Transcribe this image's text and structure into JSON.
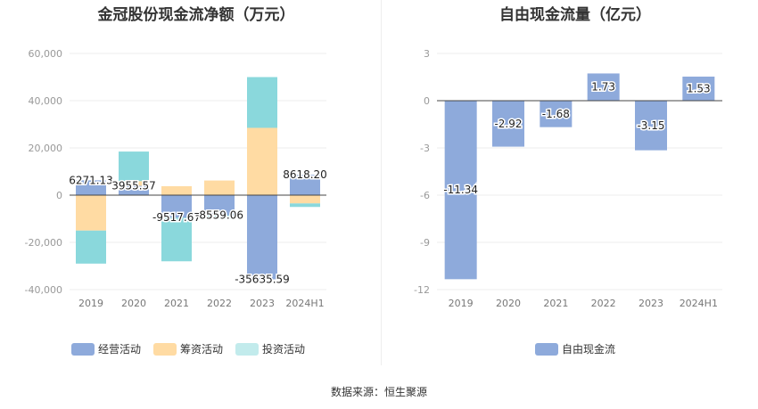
{
  "titles": {
    "left": "金冠股份现金流净额（万元）",
    "right": "自由现金流量（亿元）"
  },
  "source": "数据来源：恒生聚源",
  "colors": {
    "operating": "#8eaadb",
    "financing": "#ffdba3",
    "investing": "#8ad8dc",
    "free_cash_flow": "#8eaadb",
    "legend_investing": "#c2ebec"
  },
  "chart_data": [
    {
      "type": "bar",
      "stacked": true,
      "categories": [
        "2019",
        "2020",
        "2021",
        "2022",
        "2023",
        "2024H1"
      ],
      "ylim": [
        -40000,
        60000
      ],
      "yticks": [
        "60,000",
        "40,000",
        "20,000",
        "0",
        "-20,000",
        "-40,000"
      ],
      "series": [
        {
          "name": "经营活动",
          "values": [
            6271.13,
            3955.57,
            -9517.67,
            -8559.06,
            -35635.59,
            8618.2
          ],
          "labels": [
            "6271.13",
            "3955.57",
            "-9517.67",
            "-8559.06",
            "-35635.59",
            "8618.20"
          ]
        },
        {
          "name": "筹资活动",
          "values": [
            -15000,
            2000,
            3800,
            6200,
            28500,
            -3500
          ]
        },
        {
          "name": "投资活动",
          "values": [
            -14000,
            12500,
            -18500,
            -1500,
            21500,
            -1500
          ]
        }
      ],
      "grid": true,
      "legend": "bottom"
    },
    {
      "type": "bar",
      "categories": [
        "2019",
        "2020",
        "2021",
        "2022",
        "2023",
        "2024H1"
      ],
      "ylim": [
        -12,
        3
      ],
      "yticks": [
        "3",
        "0",
        "-3",
        "-6",
        "-9",
        "-12"
      ],
      "series": [
        {
          "name": "自由现金流",
          "values": [
            -11.34,
            -2.92,
            -1.68,
            1.73,
            -3.15,
            1.53
          ],
          "labels": [
            "-11.34",
            "-2.92",
            "-1.68",
            "1.73",
            "-3.15",
            "1.53"
          ]
        }
      ],
      "grid": true,
      "legend": "bottom"
    }
  ]
}
